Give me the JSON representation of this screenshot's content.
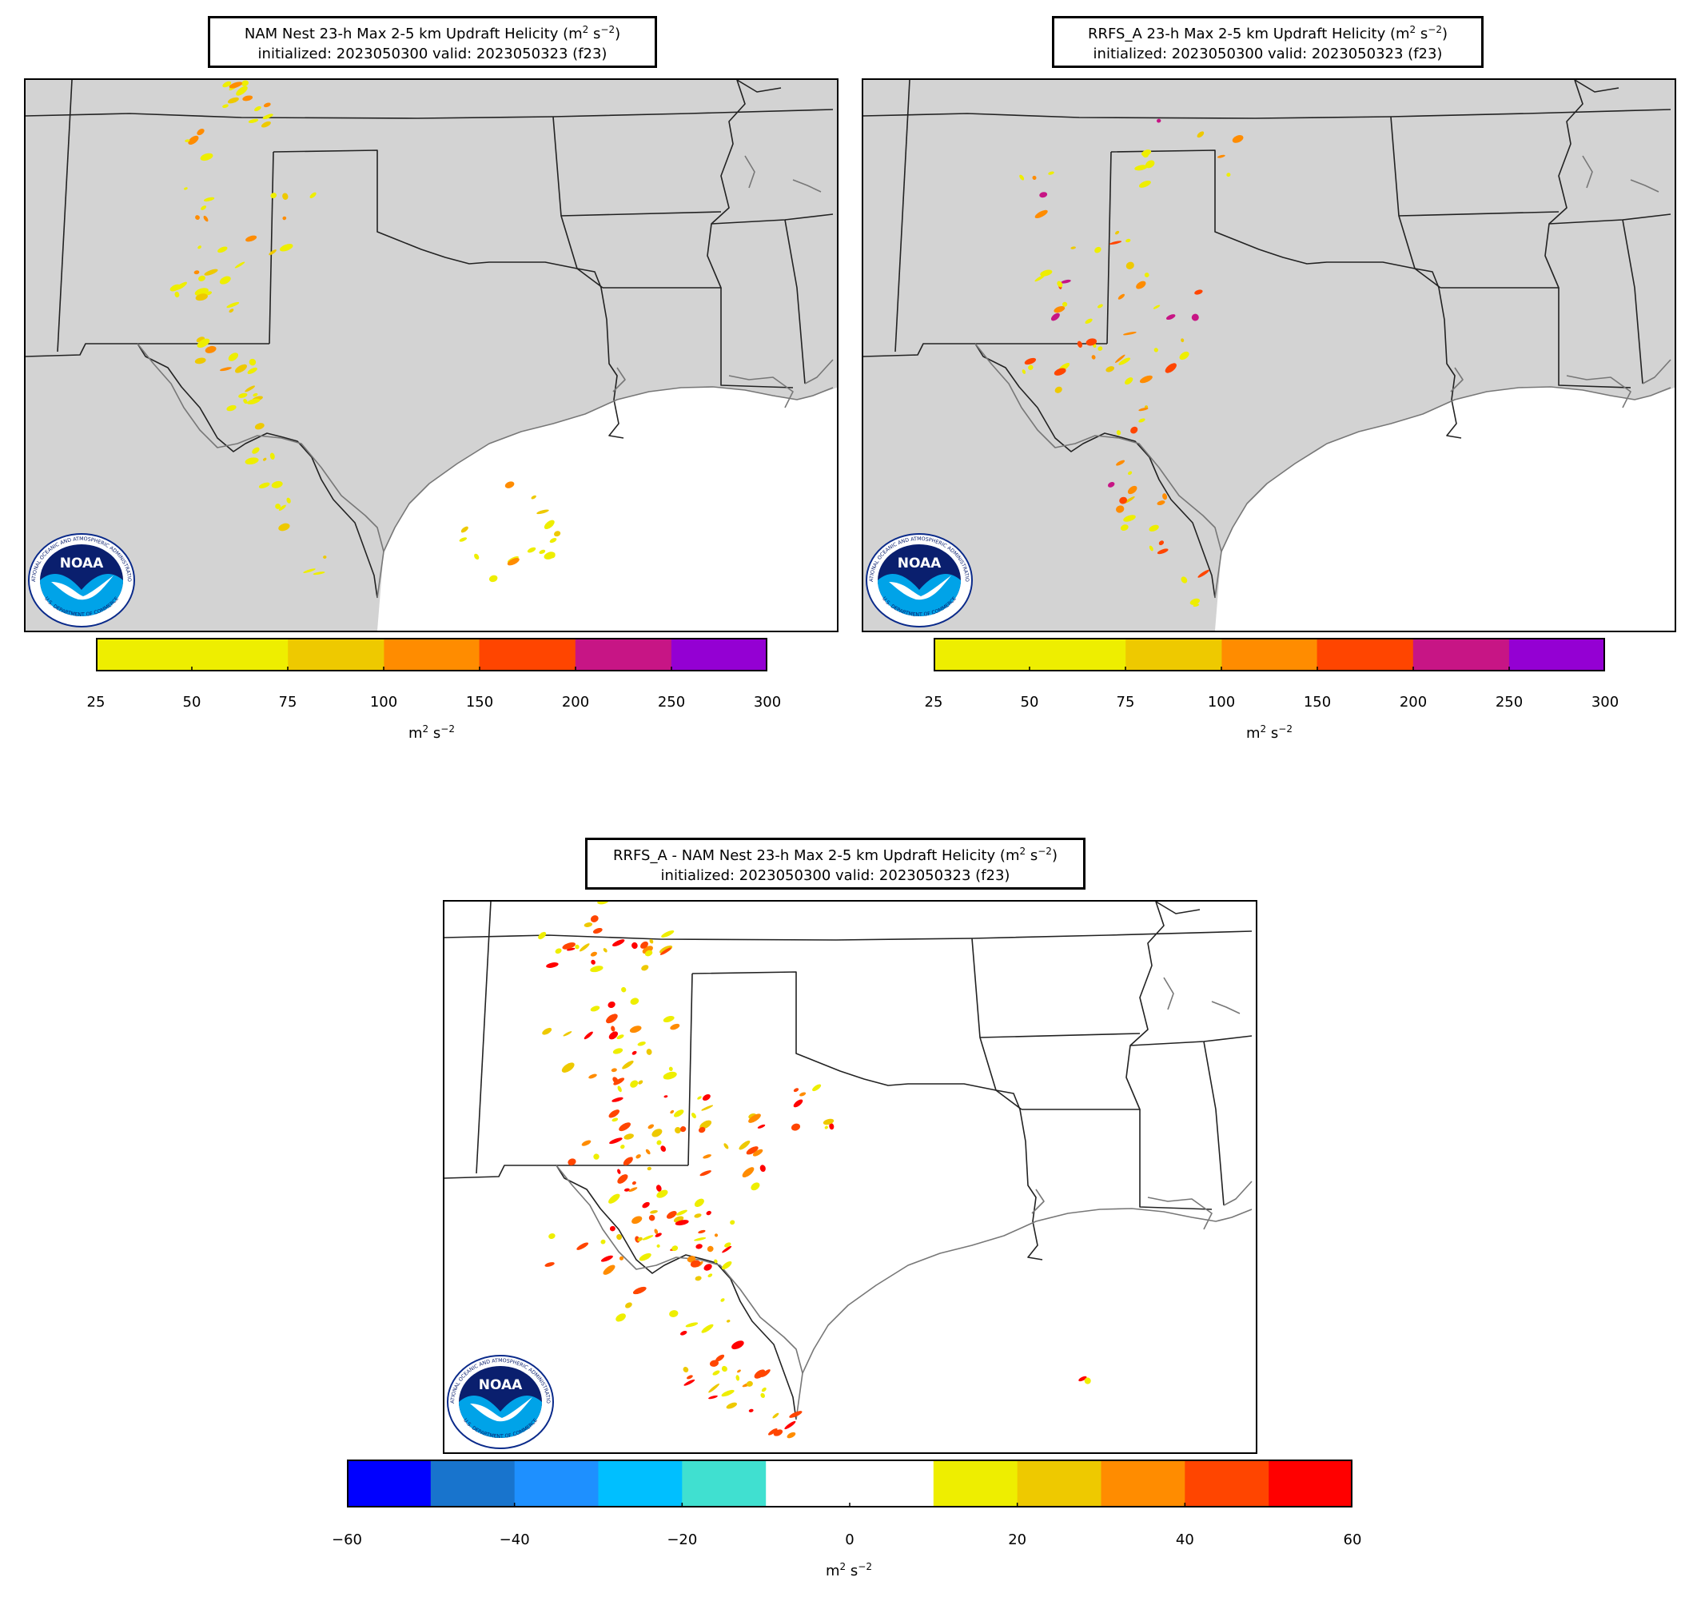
{
  "panels": [
    {
      "id": "nam",
      "title_line1": "NAM Nest 23-h Max 2-5 km Updraft Helicity",
      "title_line2": "initialized: 2023050300 valid: 2023050323 (f23)",
      "land_color": "#d3d3d3",
      "colorbar": {
        "ticks": [
          "25",
          "50",
          "75",
          "100",
          "150",
          "200",
          "250",
          "300"
        ],
        "colors": [
          "#eeee00",
          "#eeee00",
          "#eec900",
          "#ff8c00",
          "#ff4500",
          "#c71585",
          "#9400d3"
        ],
        "unit": "m"
      }
    },
    {
      "id": "rrfs",
      "title_line1": "RRFS_A 23-h Max 2-5 km Updraft Helicity",
      "title_line2": "initialized: 2023050300 valid: 2023050323 (f23)",
      "land_color": "#d3d3d3",
      "colorbar": {
        "ticks": [
          "25",
          "50",
          "75",
          "100",
          "150",
          "200",
          "250",
          "300"
        ],
        "colors": [
          "#eeee00",
          "#eeee00",
          "#eec900",
          "#ff8c00",
          "#ff4500",
          "#c71585",
          "#9400d3"
        ],
        "unit": "m"
      }
    },
    {
      "id": "diff",
      "title_line1": "RRFS_A - NAM Nest 23-h Max 2-5 km Updraft Helicity",
      "title_line2": "initialized: 2023050300 valid: 2023050323 (f23)",
      "land_color": "#ffffff",
      "colorbar": {
        "ticks": [
          "−60",
          "−40",
          "−20",
          "0",
          "20",
          "40",
          "60"
        ],
        "colors": [
          "#0000ff",
          "#1874cd",
          "#1e90ff",
          "#00bfff",
          "#40e0d0",
          "#ffffff",
          "#ffffff",
          "#eeee00",
          "#eec900",
          "#ff8c00",
          "#ff4500",
          "#ff0000"
        ],
        "unit": "m"
      }
    }
  ],
  "units": {
    "base": "m",
    "exp1": "2",
    "mid": " s",
    "exp2": "−2"
  },
  "logo": {
    "text": "NOAA",
    "ring_top": "NATIONAL OCEANIC AND ATMOSPHERIC ADMINISTRATION",
    "ring_bottom": "U.S. DEPARTMENT OF COMMERCE"
  }
}
